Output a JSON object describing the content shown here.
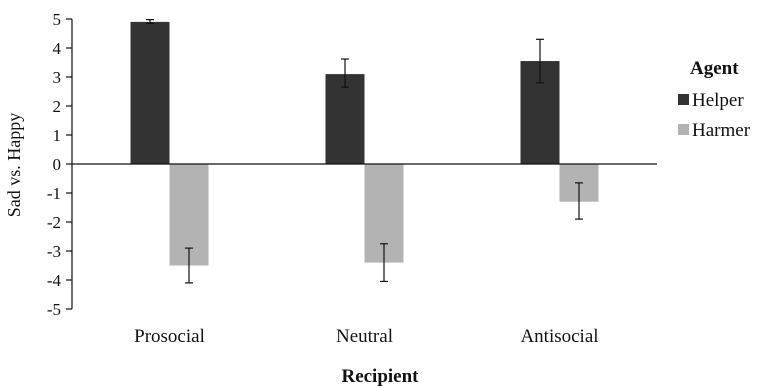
{
  "chart_data": {
    "type": "bar",
    "title": "",
    "xlabel": "Recipient",
    "ylabel": "Sad vs. Happy",
    "ylim": [
      -5,
      5
    ],
    "yticks": [
      5,
      4,
      3,
      2,
      1,
      0,
      -1,
      -2,
      -3,
      -4,
      -5
    ],
    "ytick_labels": [
      "5",
      "4",
      "3",
      "2",
      "1",
      "0",
      "-1",
      "-2",
      "-3",
      "-4",
      "-5"
    ],
    "categories": [
      "Prosocial",
      "Neutral",
      "Antisocial"
    ],
    "legend": {
      "title": "Agent",
      "position": "right"
    },
    "grid": false,
    "series": [
      {
        "name": "Helper",
        "color": "#333333",
        "values": [
          4.9,
          3.1,
          3.55
        ],
        "error_low": [
          4.85,
          2.65,
          2.8
        ],
        "error_high": [
          4.98,
          3.62,
          4.3
        ]
      },
      {
        "name": "Harmer",
        "color": "#b3b3b3",
        "values": [
          -3.5,
          -3.4,
          -1.3
        ],
        "error_low": [
          -4.1,
          -4.05,
          -1.9
        ],
        "error_high": [
          -2.9,
          -2.75,
          -0.65
        ]
      }
    ]
  }
}
